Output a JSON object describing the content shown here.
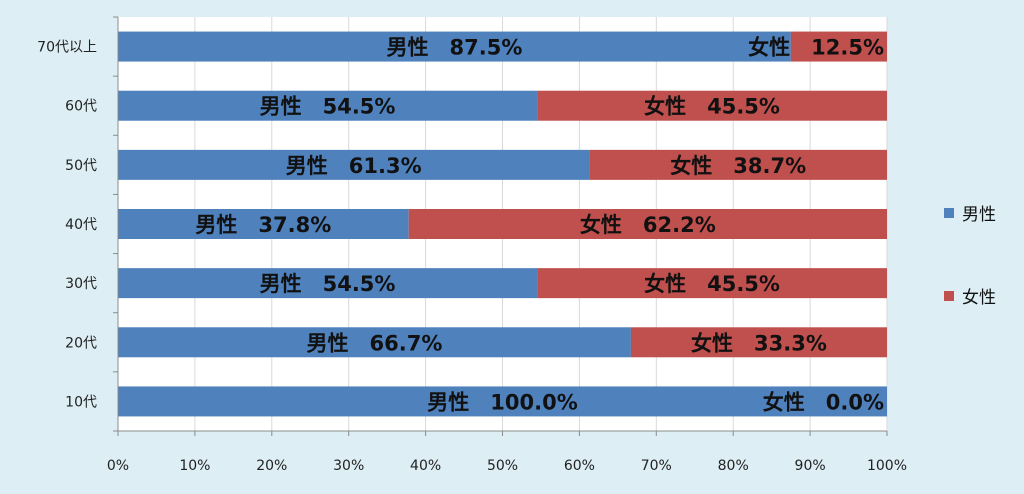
{
  "chart_data": {
    "type": "bar",
    "orientation": "horizontal",
    "stacked": "percent",
    "categories": [
      "70代以上",
      "60代",
      "50代",
      "40代",
      "30代",
      "20代",
      "10代"
    ],
    "series": [
      {
        "name": "男性",
        "color": "#4f81bd",
        "values": [
          87.5,
          54.5,
          61.3,
          37.8,
          54.5,
          66.7,
          100.0
        ],
        "labels": [
          "87.5%",
          "54.5%",
          "61.3%",
          "37.8%",
          "54.5%",
          "66.7%",
          "100.0%"
        ]
      },
      {
        "name": "女性",
        "color": "#c0504d",
        "values": [
          12.5,
          45.5,
          38.7,
          62.2,
          45.5,
          33.3,
          0.0
        ],
        "labels": [
          "12.5%",
          "45.5%",
          "38.7%",
          "62.2%",
          "45.5%",
          "33.3%",
          "0.0%"
        ]
      }
    ],
    "xlim": [
      0,
      100
    ],
    "x_ticks": [
      "0%",
      "10%",
      "20%",
      "30%",
      "40%",
      "50%",
      "60%",
      "70%",
      "80%",
      "90%",
      "100%"
    ],
    "grid": true,
    "legend_position": "right"
  }
}
